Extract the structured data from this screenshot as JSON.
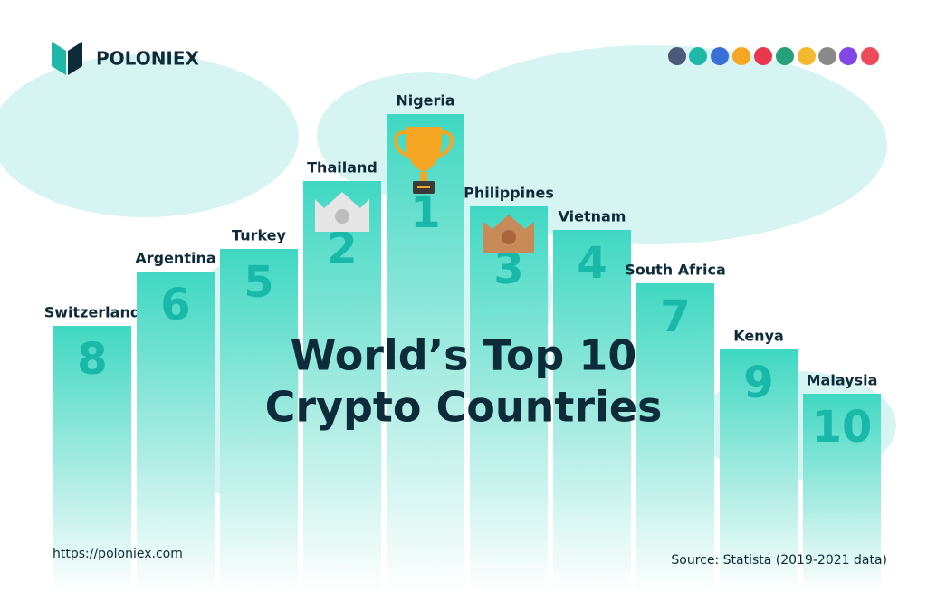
{
  "header": {
    "brand": "POLONIEX"
  },
  "title": {
    "line1": "World’s Top 10",
    "line2": "Crypto Countries"
  },
  "countries": [
    {
      "name": "Switzerland",
      "rank": 8
    },
    {
      "name": "Argentina",
      "rank": 6
    },
    {
      "name": "Turkey",
      "rank": 5
    },
    {
      "name": "Thailand",
      "rank": 2
    },
    {
      "name": "Nigeria",
      "rank": 1
    },
    {
      "name": "Philippines",
      "rank": 3
    },
    {
      "name": "Vietnam",
      "rank": 4
    },
    {
      "name": "South Africa",
      "rank": 7
    },
    {
      "name": "Kenya",
      "rank": 9
    },
    {
      "name": "Malaysia",
      "rank": 10
    }
  ],
  "footer": {
    "url": "https://poloniex.com",
    "source": "Source: Statista (2019-2021 data)"
  }
}
